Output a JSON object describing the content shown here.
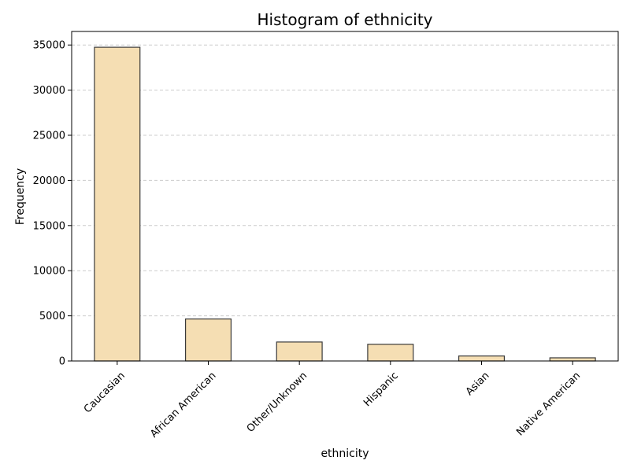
{
  "chart_data": {
    "type": "bar",
    "title": "Histogram of ethnicity",
    "xlabel": "ethnicity",
    "ylabel": "Frequency",
    "categories": [
      "Caucasian",
      "African American",
      "Other/Unknown",
      "Hispanic",
      "Asian",
      "Native American"
    ],
    "values": [
      34750,
      4650,
      2100,
      1850,
      550,
      350
    ],
    "ylim": [
      0,
      36500
    ],
    "yticks": [
      0,
      5000,
      10000,
      15000,
      20000,
      25000,
      30000,
      35000
    ],
    "grid": "y-dashed",
    "bar_color": "#f5deb3",
    "edge_color": "#3a3a3a",
    "grid_color": "#cccccc"
  }
}
